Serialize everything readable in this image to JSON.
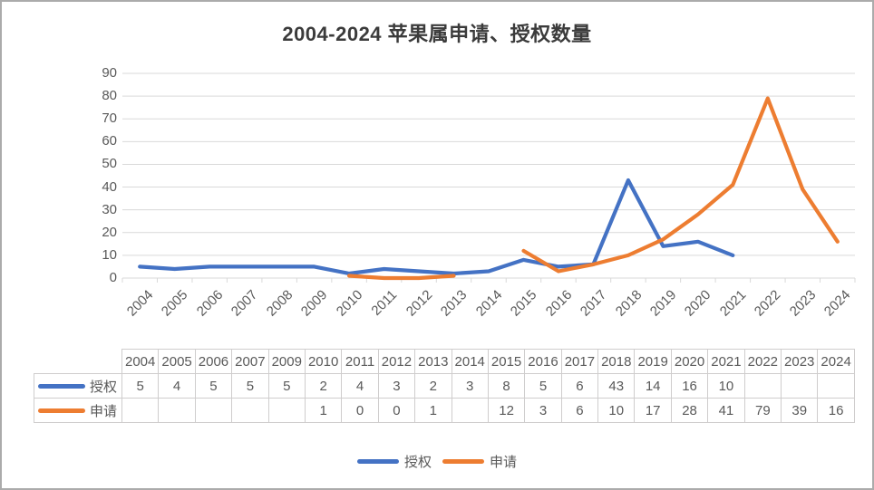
{
  "title": "2004-2024 苹果属申请、授权数量",
  "colors": {
    "authorized": "#4472C4",
    "applied": "#ED7D31",
    "gridline": "#D9D9D9",
    "axis_text": "#595959",
    "table_border": "#CFCDCD",
    "table_text": "#595959",
    "title_text": "#3B3B3B"
  },
  "chart_data": {
    "type": "line",
    "title": "2004-2024 苹果属申请、授权数量",
    "categories": [
      2004,
      2005,
      2006,
      2007,
      2008,
      2009,
      2010,
      2011,
      2012,
      2013,
      2014,
      2015,
      2016,
      2017,
      2018,
      2019,
      2020,
      2021,
      2022,
      2023,
      2024
    ],
    "series": [
      {
        "name": "授权",
        "color": "#4472C4",
        "values": [
          5,
          4,
          5,
          5,
          5,
          5,
          2,
          4,
          3,
          2,
          3,
          8,
          5,
          6,
          43,
          14,
          16,
          10,
          null,
          null,
          null
        ]
      },
      {
        "name": "申请",
        "color": "#ED7D31",
        "values": [
          null,
          null,
          null,
          null,
          null,
          null,
          1,
          0,
          0,
          1,
          null,
          12,
          3,
          6,
          10,
          17,
          28,
          41,
          79,
          39,
          16
        ]
      }
    ],
    "ylim": [
      0,
      90
    ],
    "y_ticks": [
      0,
      10,
      20,
      30,
      40,
      50,
      60,
      70,
      80,
      90
    ],
    "grid": true,
    "x_tick_rotation": -45,
    "legend_position": "bottom"
  },
  "table": {
    "years": [
      "2004",
      "2005",
      "2006",
      "2007",
      "2009",
      "2010",
      "2011",
      "2012",
      "2013",
      "2014",
      "2015",
      "2016",
      "2017",
      "2018",
      "2019",
      "2020",
      "2021",
      "2022",
      "2023",
      "2024"
    ],
    "rows": [
      {
        "label": "授权",
        "color": "#4472C4",
        "values": [
          "5",
          "4",
          "5",
          "5",
          "5",
          "2",
          "4",
          "3",
          "2",
          "3",
          "8",
          "5",
          "6",
          "43",
          "14",
          "16",
          "10",
          "",
          "",
          ""
        ]
      },
      {
        "label": "申请",
        "color": "#ED7D31",
        "values": [
          "",
          "",
          "",
          "",
          "",
          "1",
          "0",
          "0",
          "1",
          "",
          "12",
          "3",
          "6",
          "10",
          "17",
          "28",
          "41",
          "79",
          "39",
          "16"
        ]
      }
    ]
  },
  "legend": {
    "items": [
      {
        "label": "授权",
        "color": "#4472C4"
      },
      {
        "label": "申请",
        "color": "#ED7D31"
      }
    ]
  }
}
